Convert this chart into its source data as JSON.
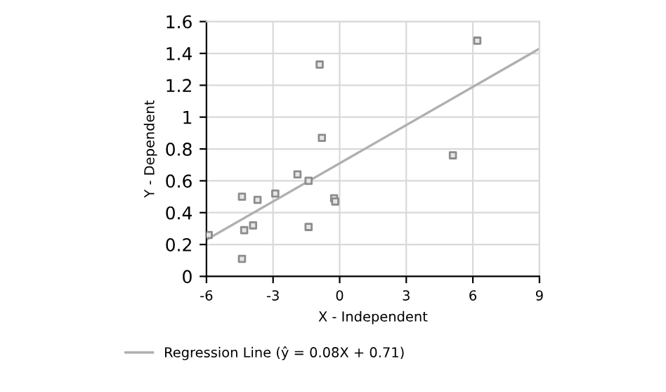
{
  "chart_data": {
    "type": "scatter",
    "xlabel": "X - Independent",
    "ylabel": "Y - Dependent",
    "xlim": [
      -6,
      9
    ],
    "xticks": [
      -6,
      -3,
      0,
      3,
      6,
      9
    ],
    "ylim": [
      0,
      1.6
    ],
    "yticks": [
      0,
      0.2,
      0.4,
      0.6,
      0.8,
      1,
      1.2,
      1.4,
      1.6
    ],
    "grid": true,
    "legend": "bottom",
    "series": [
      {
        "marker": "square",
        "color": "#8c8c8c",
        "x": [
          -5.9,
          -4.4,
          -4.3,
          -4.4,
          -3.9,
          -3.7,
          -2.9,
          -1.9,
          -1.4,
          -1.4,
          -0.25,
          -0.2,
          5.1,
          -0.9,
          -0.8,
          6.2
        ],
        "values": [
          0.26,
          0.5,
          0.29,
          0.11,
          0.32,
          0.48,
          0.52,
          0.64,
          0.6,
          0.31,
          0.49,
          0.47,
          0.76,
          1.33,
          0.87,
          1.48
        ]
      },
      {
        "type": "line",
        "marker": "none",
        "name": "Regression Line (ŷ = 0.08X + 0.71)",
        "color": "#b0b0b0",
        "x": [
          -6,
          9
        ],
        "values": [
          0.23,
          1.43
        ]
      }
    ]
  }
}
